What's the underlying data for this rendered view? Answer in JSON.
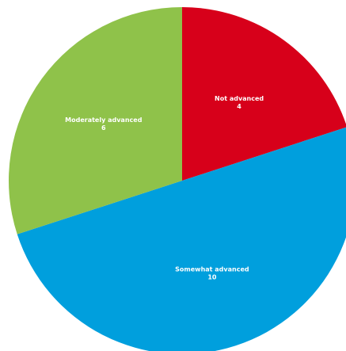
{
  "chart_data": {
    "type": "pie",
    "slices": [
      {
        "label": "Not advanced",
        "value": 4,
        "value_text": "4",
        "color": "#d7001a"
      },
      {
        "label": "Somewhat advanced",
        "value": 10,
        "value_text": "10",
        "color": "#009fdd"
      },
      {
        "label": "Moderately advanced",
        "value": 6,
        "value_text": "6",
        "color": "#8fc24a"
      }
    ],
    "start_angle_deg": 0,
    "direction": "clockwise",
    "legend": "none"
  }
}
